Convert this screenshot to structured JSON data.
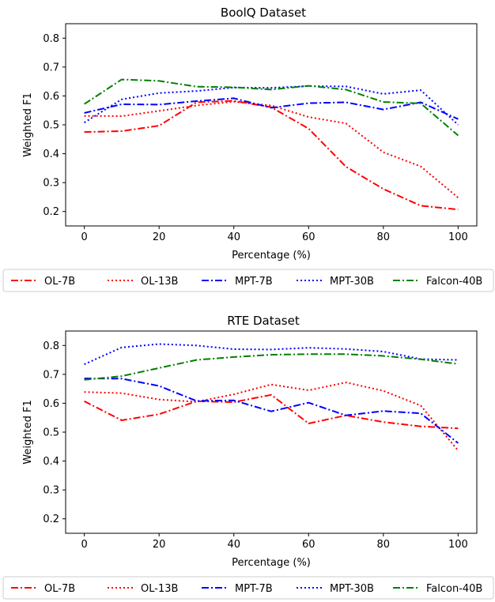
{
  "chart_data": [
    {
      "type": "line",
      "title": "BoolQ Dataset",
      "xlabel": "Percentage (%)",
      "ylabel": "Weighted F1",
      "xlim": [
        -5,
        105
      ],
      "ylim": [
        0.15,
        0.85
      ],
      "xticks": [
        0,
        20,
        40,
        60,
        80,
        100
      ],
      "yticks": [
        0.2,
        0.3,
        0.4,
        0.5,
        0.6,
        0.7,
        0.8
      ],
      "grid": false,
      "legend": "bottom",
      "x": [
        0,
        10,
        20,
        30,
        40,
        50,
        60,
        70,
        80,
        90,
        100
      ],
      "series": [
        {
          "name": "OL-7B",
          "color": "#ff0000",
          "style": "dashdot",
          "values": [
            0.475,
            0.478,
            0.497,
            0.578,
            0.583,
            0.561,
            0.487,
            0.355,
            0.278,
            0.22,
            0.207
          ]
        },
        {
          "name": "OL-13B",
          "color": "#ff0000",
          "style": "dotted",
          "values": [
            0.531,
            0.53,
            0.548,
            0.567,
            0.58,
            0.567,
            0.527,
            0.505,
            0.405,
            0.356,
            0.248
          ]
        },
        {
          "name": "MPT-7B",
          "color": "#0000ff",
          "style": "dashdot",
          "values": [
            0.541,
            0.571,
            0.57,
            0.582,
            0.592,
            0.559,
            0.575,
            0.578,
            0.553,
            0.578,
            0.52
          ]
        },
        {
          "name": "MPT-30B",
          "color": "#0000ff",
          "style": "dotted",
          "values": [
            0.508,
            0.588,
            0.61,
            0.617,
            0.629,
            0.628,
            0.634,
            0.633,
            0.607,
            0.62,
            0.5
          ]
        },
        {
          "name": "Falcon-40B",
          "color": "#008000",
          "style": "dashdot",
          "values": [
            0.572,
            0.657,
            0.652,
            0.632,
            0.63,
            0.622,
            0.635,
            0.622,
            0.579,
            0.574,
            0.463
          ]
        }
      ]
    },
    {
      "type": "line",
      "title": "RTE Dataset",
      "xlabel": "Percentage (%)",
      "ylabel": "Weighted F1",
      "xlim": [
        -5,
        105
      ],
      "ylim": [
        0.15,
        0.85
      ],
      "xticks": [
        0,
        20,
        40,
        60,
        80,
        100
      ],
      "yticks": [
        0.2,
        0.3,
        0.4,
        0.5,
        0.6,
        0.7,
        0.8
      ],
      "grid": false,
      "legend": "bottom",
      "x": [
        0,
        10,
        20,
        30,
        40,
        50,
        60,
        70,
        80,
        90,
        100
      ],
      "series": [
        {
          "name": "OL-7B",
          "color": "#ff0000",
          "style": "dashdot",
          "values": [
            0.607,
            0.541,
            0.562,
            0.607,
            0.604,
            0.629,
            0.53,
            0.558,
            0.535,
            0.52,
            0.513
          ]
        },
        {
          "name": "OL-13B",
          "color": "#ff0000",
          "style": "dotted",
          "values": [
            0.639,
            0.635,
            0.613,
            0.605,
            0.631,
            0.665,
            0.645,
            0.672,
            0.643,
            0.592,
            0.436
          ]
        },
        {
          "name": "MPT-7B",
          "color": "#0000ff",
          "style": "dashdot",
          "values": [
            0.686,
            0.685,
            0.66,
            0.608,
            0.61,
            0.572,
            0.602,
            0.558,
            0.573,
            0.565,
            0.462
          ]
        },
        {
          "name": "MPT-30B",
          "color": "#0000ff",
          "style": "dotted",
          "values": [
            0.735,
            0.793,
            0.805,
            0.8,
            0.787,
            0.786,
            0.792,
            0.788,
            0.779,
            0.753,
            0.75
          ]
        },
        {
          "name": "Falcon-40B",
          "color": "#008000",
          "style": "dashdot",
          "values": [
            0.681,
            0.694,
            0.722,
            0.75,
            0.76,
            0.768,
            0.77,
            0.77,
            0.764,
            0.752,
            0.736
          ]
        }
      ]
    }
  ]
}
